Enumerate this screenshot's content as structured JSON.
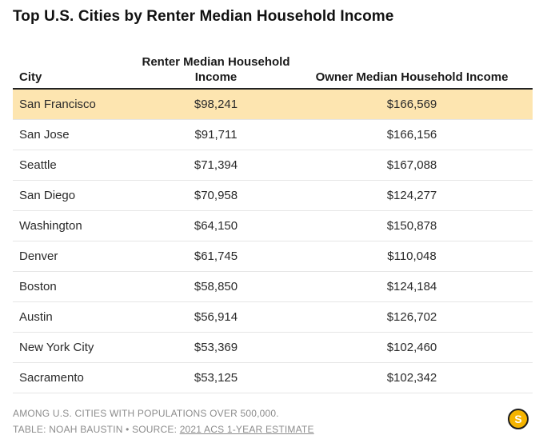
{
  "title": "Top U.S. Cities by Renter Median Household Income",
  "chart_data": {
    "type": "table",
    "title": "Top U.S. Cities by Renter Median Household Income",
    "columns": [
      "City",
      "Renter Median Household Income",
      "Owner Median Household Income"
    ],
    "highlighted_row": "San Francisco",
    "rows": [
      {
        "city": "San Francisco",
        "renter": "$98,241",
        "owner": "$166,569"
      },
      {
        "city": "San Jose",
        "renter": "$91,711",
        "owner": "$166,156"
      },
      {
        "city": "Seattle",
        "renter": "$71,394",
        "owner": "$167,088"
      },
      {
        "city": "San Diego",
        "renter": "$70,958",
        "owner": "$124,277"
      },
      {
        "city": "Washington",
        "renter": "$64,150",
        "owner": "$150,878"
      },
      {
        "city": "Denver",
        "renter": "$61,745",
        "owner": "$110,048"
      },
      {
        "city": "Boston",
        "renter": "$58,850",
        "owner": "$124,184"
      },
      {
        "city": "Austin",
        "renter": "$56,914",
        "owner": "$126,702"
      },
      {
        "city": "New York City",
        "renter": "$53,369",
        "owner": "$102,460"
      },
      {
        "city": "Sacramento",
        "renter": "$53,125",
        "owner": "$102,342"
      }
    ]
  },
  "footer": {
    "note": "AMONG U.S. CITIES WITH POPULATIONS OVER 500,000.",
    "credit": "TABLE: NOAH BAUSTIN • SOURCE: ",
    "source_link": "2021 ACS 1-YEAR ESTIMATE"
  },
  "logo": {
    "letter": "S",
    "color": "#f5b400"
  },
  "colors": {
    "highlight": "#fde5b0",
    "text": "#2a2a2a",
    "muted": "#8c8c8c"
  }
}
